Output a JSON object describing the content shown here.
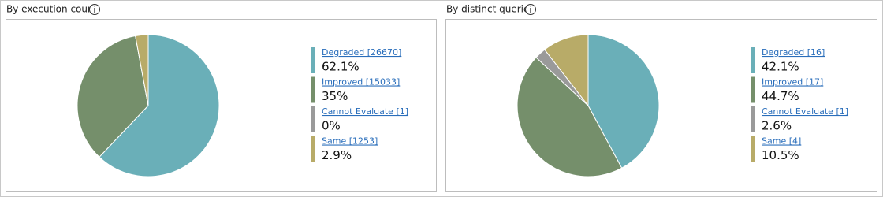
{
  "chart_data": [
    {
      "type": "pie",
      "title": "By execution count",
      "categories": [
        "Degraded [26670]",
        "Improved [15033]",
        "Cannot Evaluate [1]",
        "Same [1253]"
      ],
      "values": [
        62.1,
        35,
        0,
        2.9
      ],
      "value_labels": [
        "62.1%",
        "35%",
        "0%",
        "2.9%"
      ],
      "colors": [
        "#6aafb8",
        "#758f6b",
        "#9a9a9a",
        "#b8ab68"
      ]
    },
    {
      "type": "pie",
      "title": "By distinct queries",
      "categories": [
        "Degraded [16]",
        "Improved [17]",
        "Cannot Evaluate [1]",
        "Same [4]"
      ],
      "values": [
        42.1,
        44.7,
        2.6,
        10.5
      ],
      "value_labels": [
        "42.1%",
        "44.7%",
        "2.6%",
        "10.5%"
      ],
      "colors": [
        "#6aafb8",
        "#758f6b",
        "#9a9a9a",
        "#b8ab68"
      ]
    }
  ]
}
